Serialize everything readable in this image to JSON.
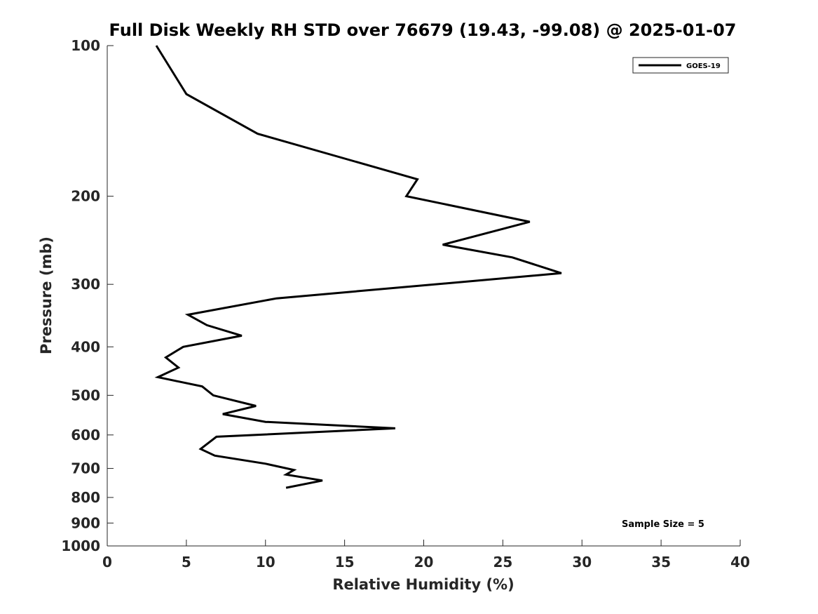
{
  "chart_data": {
    "type": "line",
    "title": "Full Disk Weekly RH STD over 76679 (19.43, -99.08) @ 2025-01-07",
    "xlabel": "Relative Humidity (%)",
    "ylabel": "Pressure (mb)",
    "xlim": [
      0,
      40
    ],
    "ylim": [
      100,
      1000
    ],
    "yscale": "log",
    "y_reversed": true,
    "xticks": [
      0,
      5,
      10,
      15,
      20,
      25,
      30,
      35,
      40
    ],
    "yticks": [
      100,
      200,
      300,
      400,
      500,
      600,
      700,
      800,
      900,
      1000
    ],
    "grid": false,
    "legend_position": "top-right",
    "series": [
      {
        "name": "GOES-19",
        "color": "#000000",
        "points": [
          {
            "x": 3.1,
            "y": 100
          },
          {
            "x": 5.0,
            "y": 125
          },
          {
            "x": 9.5,
            "y": 150
          },
          {
            "x": 19.6,
            "y": 185
          },
          {
            "x": 18.9,
            "y": 200
          },
          {
            "x": 26.7,
            "y": 225
          },
          {
            "x": 21.2,
            "y": 250
          },
          {
            "x": 25.6,
            "y": 265
          },
          {
            "x": 28.7,
            "y": 285
          },
          {
            "x": 10.7,
            "y": 320
          },
          {
            "x": 5.1,
            "y": 345
          },
          {
            "x": 6.3,
            "y": 362
          },
          {
            "x": 8.5,
            "y": 380
          },
          {
            "x": 4.8,
            "y": 400
          },
          {
            "x": 3.7,
            "y": 420
          },
          {
            "x": 4.5,
            "y": 440
          },
          {
            "x": 3.2,
            "y": 460
          },
          {
            "x": 6.0,
            "y": 480
          },
          {
            "x": 6.7,
            "y": 500
          },
          {
            "x": 9.4,
            "y": 525
          },
          {
            "x": 7.3,
            "y": 545
          },
          {
            "x": 10.0,
            "y": 565
          },
          {
            "x": 18.2,
            "y": 582
          },
          {
            "x": 6.9,
            "y": 605
          },
          {
            "x": 5.9,
            "y": 640
          },
          {
            "x": 6.8,
            "y": 660
          },
          {
            "x": 10.0,
            "y": 685
          },
          {
            "x": 11.8,
            "y": 705
          },
          {
            "x": 11.3,
            "y": 720
          },
          {
            "x": 13.6,
            "y": 740
          },
          {
            "x": 11.3,
            "y": 765
          }
        ]
      }
    ],
    "annotation": "Sample Size = 5"
  }
}
